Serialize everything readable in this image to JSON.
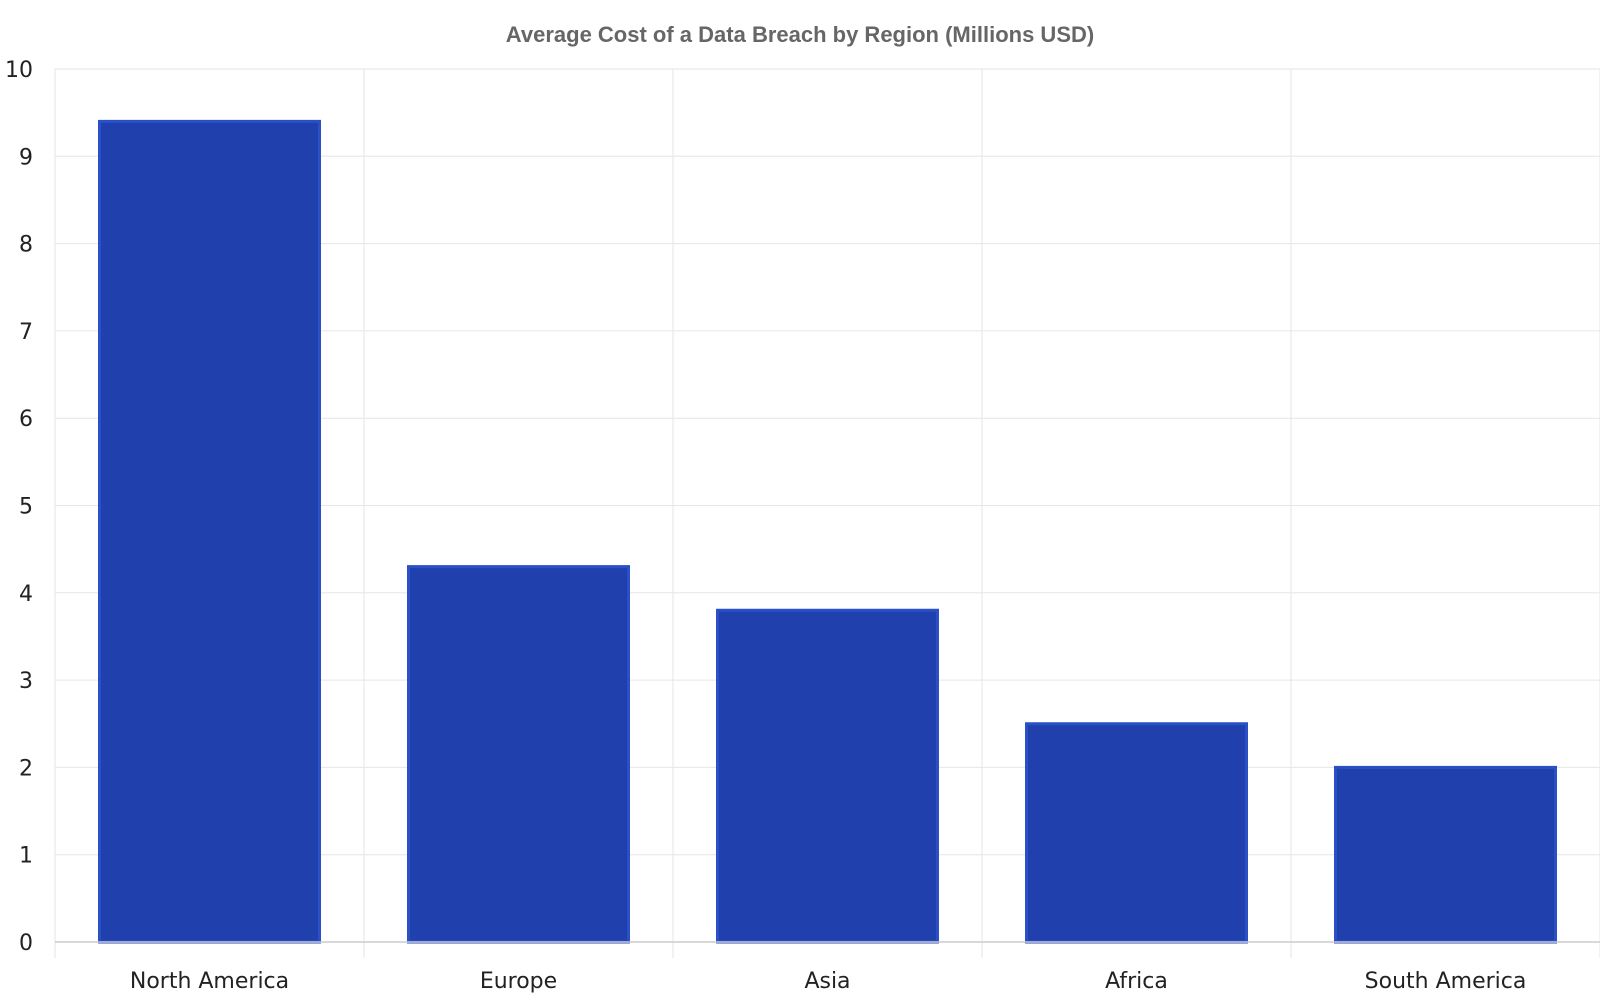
{
  "chart_data": {
    "type": "bar",
    "title": "Average Cost of a Data Breach by Region (Millions USD)",
    "xlabel": "",
    "ylabel": "",
    "categories": [
      "North America",
      "Europe",
      "Asia",
      "Africa",
      "South America"
    ],
    "values": [
      9.4,
      4.3,
      3.8,
      2.5,
      2.0
    ],
    "ylim": [
      0,
      10
    ],
    "yticks": [
      "0",
      "1",
      "2",
      "3",
      "4",
      "5",
      "6",
      "7",
      "8",
      "9",
      "10"
    ],
    "grid": true,
    "legend": "none",
    "colors": {
      "bar_fill": "#2041ad",
      "bar_edge": "#2a4fc7",
      "grid": "#e6e6e6",
      "axis": "#cccccc"
    }
  }
}
